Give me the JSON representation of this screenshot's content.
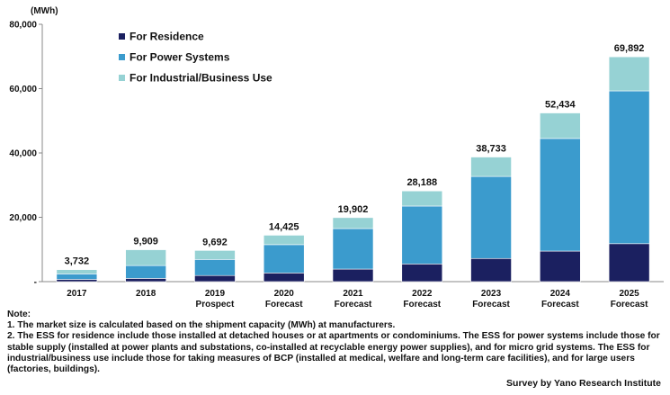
{
  "chart_data": {
    "type": "bar",
    "stacked": true,
    "unit_label": "(MWh)",
    "categories": [
      [
        "2017"
      ],
      [
        "2018"
      ],
      [
        "2019",
        "Prospect"
      ],
      [
        "2020",
        "Forecast"
      ],
      [
        "2021",
        "Forecast"
      ],
      [
        "2022",
        "Forecast"
      ],
      [
        "2023",
        "Forecast"
      ],
      [
        "2024",
        "Forecast"
      ],
      [
        "2025",
        "Forecast"
      ]
    ],
    "series": [
      {
        "name": "For Residence",
        "color": "#1b2060",
        "values": [
          700,
          1000,
          1900,
          2700,
          3900,
          5500,
          7200,
          9500,
          11800
        ]
      },
      {
        "name": "For Power Systems",
        "color": "#3b9bcd",
        "values": [
          1700,
          4000,
          5000,
          8800,
          12600,
          18000,
          25500,
          35000,
          47500
        ]
      },
      {
        "name": "For Industrial/Business Use",
        "color": "#96d2d4",
        "values": [
          1332,
          4909,
          2792,
          2925,
          3402,
          4688,
          6033,
          7934,
          10592
        ]
      }
    ],
    "totals": [
      "3,732",
      "9,909",
      "9,692",
      "14,425",
      "19,902",
      "28,188",
      "38,733",
      "52,434",
      "69,892"
    ],
    "yticks": [
      "-",
      "20,000",
      "40,000",
      "60,000",
      "80,000"
    ],
    "ylim": [
      0,
      80000
    ],
    "legend_position": "top-left",
    "grid": false
  },
  "unit": "(MWh)",
  "notes": {
    "heading": "Note:",
    "line1": "1. The market size is calculated based on the shipment capacity (MWh) at manufacturers.",
    "line2": "2. The ESS for residence include those installed at detached houses or at apartments or condominiums. The ESS for power systems include those for stable supply (installed at power plants and substations, co-installed at recyclable energy power supplies), and for micro grid systems. The ESS for industrial/business use include those for taking measures of BCP (installed at medical, welfare and long-term care facilities), and for large users (factories, buildings)."
  },
  "source": "Survey by Yano Research Institute"
}
